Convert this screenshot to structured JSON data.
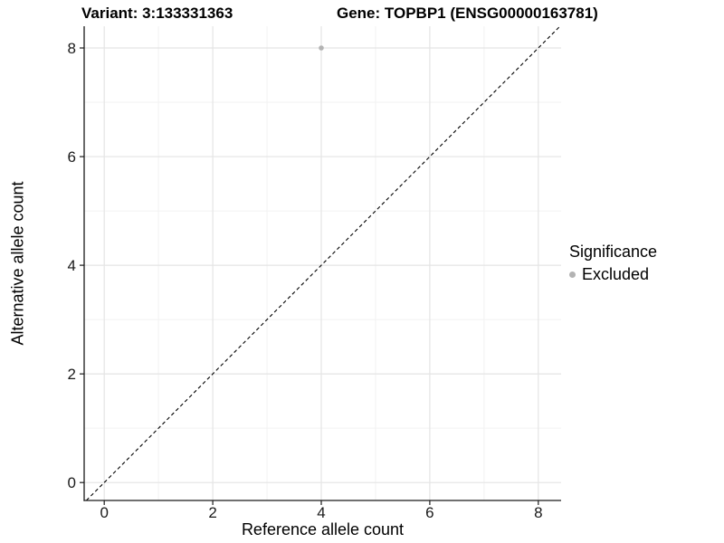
{
  "figure": {
    "background": "#ffffff"
  },
  "chart_data": {
    "type": "scatter",
    "titles": {
      "left": "Variant: 3:133331363",
      "right": "Gene: TOPBP1 (ENSG00000163781)"
    },
    "xlabel": "Reference allele count",
    "ylabel": "Alternative allele count",
    "xlim": [
      -0.37,
      8.42
    ],
    "ylim": [
      -0.33,
      8.4
    ],
    "xticks": [
      0,
      2,
      4,
      6,
      8
    ],
    "yticks": [
      0,
      2,
      4,
      6,
      8
    ],
    "xminor": [
      1,
      3,
      5,
      7
    ],
    "yminor": [
      1,
      3,
      5,
      7
    ],
    "grid": "major+minor",
    "points": [
      {
        "x": 4,
        "y": 8,
        "series": "Excluded"
      }
    ],
    "identity_line": {
      "slope": 1,
      "intercept": 0,
      "style": "dashed"
    },
    "legend": {
      "title": "Significance",
      "position": "right",
      "entries": [
        {
          "label": "Excluded",
          "color": "#b3b3b3",
          "marker": "circle"
        }
      ]
    },
    "style": {
      "point_color": "#b3b3b3",
      "grid_major_color": "#e4e4e4",
      "grid_minor_color": "#f2f2f2",
      "axis_color": "#1a1a1a",
      "tick_label_color": "#1a1a1a",
      "identity_line_color": "#000000",
      "text_color": "#000000"
    }
  }
}
